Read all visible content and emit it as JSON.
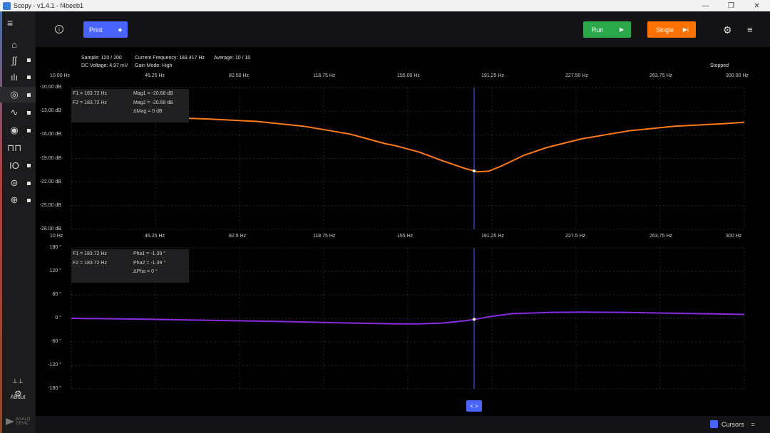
{
  "window": {
    "title": "Scopy - v1.4.1 - f4beeb1",
    "minimize": "—",
    "maximize": "❐",
    "close": "✕"
  },
  "sidebar": {
    "menu_icon": "≡",
    "items": [
      {
        "name": "home",
        "icon": "⌂"
      },
      {
        "name": "oscilloscope",
        "icon": "∫∫"
      },
      {
        "name": "spectrum",
        "icon": "ılı"
      },
      {
        "name": "network-analyzer",
        "icon": "◎"
      },
      {
        "name": "signal-generator",
        "icon": "∿"
      },
      {
        "name": "logic",
        "icon": "◉"
      },
      {
        "name": "pattern-generator",
        "icon": "⊓⊓"
      },
      {
        "name": "digital-io",
        "icon": "IO"
      },
      {
        "name": "voltmeter",
        "icon": "⊜"
      },
      {
        "name": "power",
        "icon": "⊕"
      }
    ],
    "prefs_icon": "⚙",
    "about_label": "About",
    "logo_text_1": "ANALO",
    "logo_text_2": "DEVIC"
  },
  "toolbar": {
    "info_icon": "i",
    "print_label": "Print",
    "print_arrow": "◆",
    "run_label": "Run",
    "run_arrow": "▶",
    "single_label": "Single",
    "single_arrow": "▶|",
    "gear_icon": "⚙",
    "menu_icon": "≡"
  },
  "status": {
    "sample": "Sample: 120 / 200",
    "current_frequency": "Current Frequency: 183.417 Hz",
    "average": "Average: 10 / 10",
    "dc_voltage": "DC Voltage: 4.97 mV",
    "gain_mode": "Gain Mode: High",
    "state": "Stopped"
  },
  "magnitude_plot": {
    "x_ticks": [
      "10.00 Hz",
      "46.25 Hz",
      "82.50 Hz",
      "118.75 Hz",
      "155.00 Hz",
      "191.25 Hz",
      "227.50 Hz",
      "263.75 Hz",
      "300.00 Hz"
    ],
    "y_ticks": [
      "-10.00 dB",
      "-13.00 dB",
      "-16.00 dB",
      "-19.00 dB",
      "-22.00 dB",
      "-25.00 dB",
      "-28.00 dB"
    ],
    "cursor": {
      "f1": "F1 =  183.72 Hz",
      "f2": "F2 =  183.72 Hz",
      "v1": "Mag1 =  -20.68 dB",
      "v2": "Mag2 =  -20.68 dB",
      "dv": "ΔMag =  0 dB"
    },
    "color": "#ff7a18"
  },
  "phase_plot": {
    "x_ticks": [
      "10 Hz",
      "46.25 Hz",
      "82.5 Hz",
      "118.75 Hz",
      "155 Hz",
      "191.25 Hz",
      "227.5 Hz",
      "263.75 Hz",
      "300 Hz"
    ],
    "y_ticks": [
      "180 °",
      "120 °",
      "60 °",
      "0 °",
      "-60 °",
      "-120 °",
      "-180 °"
    ],
    "cursor": {
      "f1": "F1 =  183.72 Hz",
      "f2": "F2 =  183.72 Hz",
      "v1": "Pha1 =  -1.39 °",
      "v2": "Pha2 =  -1.39 °",
      "dv": "ΔPha =  0 °"
    },
    "color": "#8a2be2"
  },
  "bottom": {
    "nav_icon": "< >",
    "cursors_label": "Cursors",
    "cursors_menu_icon": "="
  },
  "chart_data": [
    {
      "type": "line",
      "series": [
        {
          "x": [
            10,
            30,
            50,
            70,
            90,
            110,
            130,
            145,
            150,
            160,
            170,
            180,
            185,
            190,
            195,
            205,
            215,
            230,
            250,
            270,
            290,
            300
          ],
          "values": [
            -13.5,
            -13.6,
            -13.8,
            -14.0,
            -14.3,
            -14.9,
            -15.9,
            -17.1,
            -17.4,
            -18.2,
            -19.3,
            -20.3,
            -20.7,
            -20.6,
            -20.0,
            -18.6,
            -17.6,
            -16.5,
            -15.5,
            -14.9,
            -14.6,
            -14.4
          ]
        }
      ],
      "xlim": [
        10,
        300
      ],
      "ylim": [
        -28,
        -10
      ]
    },
    {
      "type": "line",
      "series": [
        {
          "x": [
            10,
            40,
            70,
            100,
            130,
            150,
            160,
            170,
            180,
            185,
            190,
            200,
            215,
            230,
            250,
            270,
            300
          ],
          "values": [
            0,
            -2,
            -5,
            -8,
            -12,
            -14,
            -14,
            -12,
            -6,
            -1.39,
            4,
            12,
            15,
            16,
            15,
            13,
            10
          ]
        }
      ],
      "xlim": [
        10,
        300
      ],
      "ylim": [
        -180,
        180
      ]
    }
  ]
}
